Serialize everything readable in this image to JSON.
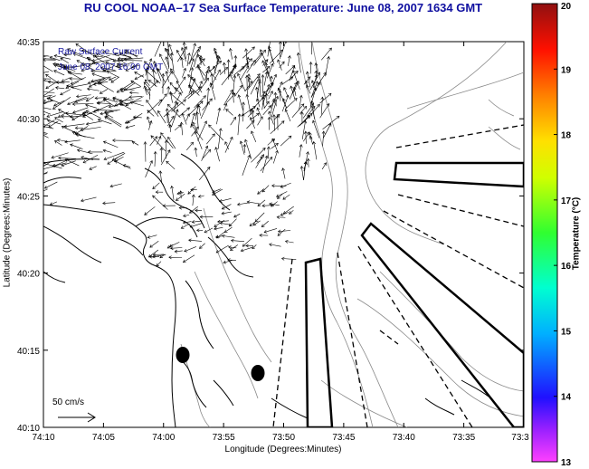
{
  "title": "RU COOL   NOAA–17  Sea Surface Temperature:  June 08, 2007 1634 GMT",
  "notes": {
    "line1": "Raw Surface Current",
    "line2": "June 08, 2007 16:00 GMT"
  },
  "axes": {
    "xlabel": "Longitude (Degrees:Minutes)",
    "ylabel": "Latitude (Degrees:Minutes)",
    "x_ticks": [
      "74:10",
      "74:05",
      "74:00",
      "73:55",
      "73:50",
      "73:45",
      "73:40",
      "73:35",
      "73:3"
    ],
    "y_ticks": [
      "40:35",
      "40:30",
      "40:25",
      "40:20",
      "40:15",
      "40:10"
    ]
  },
  "scale_vector": {
    "label": "50 cm/s"
  },
  "colorbar": {
    "title": "Temperature (°C)",
    "ticks": [
      "20",
      "19",
      "18",
      "17",
      "16",
      "15",
      "14",
      "13"
    ],
    "min": 13,
    "max": 20
  },
  "colors": {
    "title_text": "#1010a0",
    "note_text": "#1a1aa0"
  }
}
